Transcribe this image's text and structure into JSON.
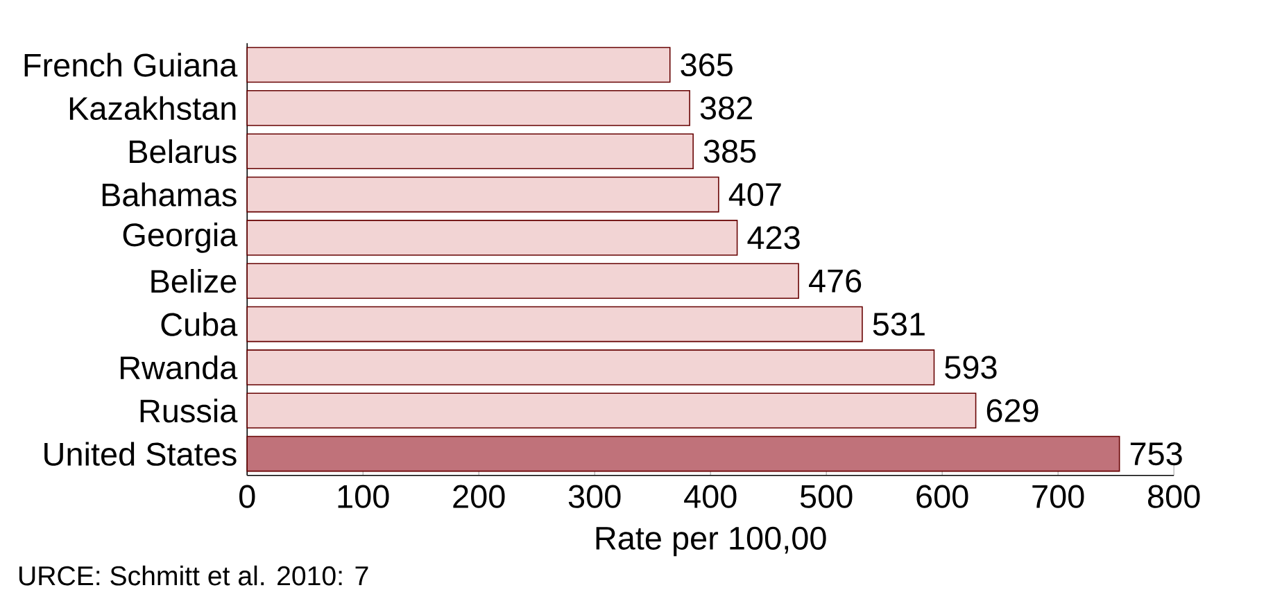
{
  "chart_data": {
    "type": "bar",
    "orientation": "horizontal",
    "categories": [
      "French Guiana",
      "Kazakhstan",
      "Belarus",
      "Bahamas",
      "Georgia",
      "Belize",
      "Cuba",
      "Rwanda",
      "Russia",
      "United States"
    ],
    "values": [
      365,
      382,
      385,
      407,
      423,
      476,
      531,
      593,
      629,
      753
    ],
    "colors": [
      "#f2d4d4",
      "#f2d4d4",
      "#f2d4d4",
      "#f2d4d4",
      "#f2d4d4",
      "#f2d4d4",
      "#f2d4d4",
      "#f2d4d4",
      "#f2d4d4",
      "#c0727a"
    ],
    "data_labels": true,
    "xlim": [
      0,
      800
    ],
    "xticks": [
      0,
      100,
      200,
      300,
      400,
      500,
      600,
      700,
      800
    ],
    "xlabel": "Rate per 100,00",
    "annotations": [
      "URCE: Schmitt et al. 2010: 7"
    ],
    "grid": false
  }
}
